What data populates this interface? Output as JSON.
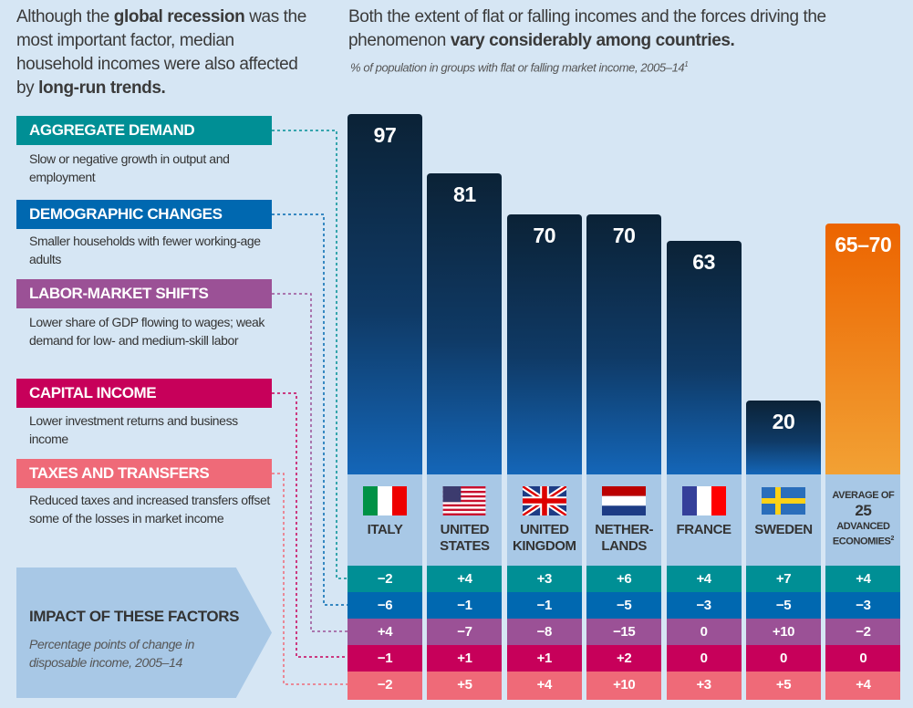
{
  "intro": {
    "pre": "Although the ",
    "b1": "global recession",
    "mid": " was the most important factor, median household incomes were also affected by ",
    "b2": "long-run trends."
  },
  "headline": {
    "pre": "Both the extent of flat or falling incomes and the forces driving the phenomenon ",
    "bold": "vary considerably among countries."
  },
  "subtitle": "% of population in groups with flat or falling market income, 2005–14",
  "subtitle_note": "1",
  "factors": [
    {
      "title": "AGGREGATE DEMAND",
      "desc": "Slow or negative growth in output and employment",
      "color": "#008f95"
    },
    {
      "title": "DEMOGRAPHIC CHANGES",
      "desc": "Smaller households with fewer working-age adults",
      "color": "#0068b0"
    },
    {
      "title": "LABOR-MARKET SHIFTS",
      "desc": "Lower share of GDP flowing to wages; weak demand for low- and medium-skill labor",
      "color": "#9b5196"
    },
    {
      "title": "CAPITAL INCOME",
      "desc": "Lower investment returns and business income",
      "color": "#c7005a"
    },
    {
      "title": "TAXES AND TRANSFERS",
      "desc": "Reduced taxes and increased transfers offset some of the losses in market income",
      "color": "#ef6a78"
    }
  ],
  "impact": {
    "title": "IMPACT OF THESE FACTORS",
    "desc": "Percentage points of change in disposable income, 2005–14"
  },
  "chart_data": {
    "type": "bar",
    "title": "% of population in groups with flat or falling market income, 2005–14",
    "categories": [
      "ITALY",
      "UNITED\nSTATES",
      "UNITED\nKINGDOM",
      "NETHER-\nLANDS",
      "FRANCE",
      "SWEDEN",
      "AVERAGE OF 25 ADVANCED ECONOMIES"
    ],
    "values": [
      97,
      81,
      70,
      70,
      63,
      20,
      67.5
    ],
    "labels": [
      "97",
      "81",
      "70",
      "70",
      "63",
      "20",
      "65–70"
    ],
    "avg": {
      "l1": "AVERAGE OF",
      "l2": "25",
      "l3": "ADVANCED ECONOMIES",
      "note": "2"
    },
    "flags": [
      "italy-flag",
      "us-flag",
      "uk-flag",
      "netherlands-flag",
      "france-flag",
      "sweden-flag",
      null
    ],
    "impact_table": [
      [
        "−2",
        "+4",
        "+3",
        "+6",
        "+4",
        "+7",
        "+4"
      ],
      [
        "−6",
        "−1",
        "−1",
        "−5",
        "−3",
        "−5",
        "−3"
      ],
      [
        "+4",
        "−7",
        "−8",
        "−15",
        "0",
        "+10",
        "−2"
      ],
      [
        "−1",
        "+1",
        "+1",
        "+2",
        "0",
        "0",
        "0"
      ],
      [
        "−2",
        "+5",
        "+4",
        "+10",
        "+3",
        "+5",
        "+4"
      ]
    ],
    "colors": {
      "bar_top": "#0b2236",
      "bar_bottom": "#1466b8",
      "avg_top": "#ec6400",
      "avg_bottom": "#f2a134"
    },
    "ylim": [
      0,
      100
    ]
  }
}
